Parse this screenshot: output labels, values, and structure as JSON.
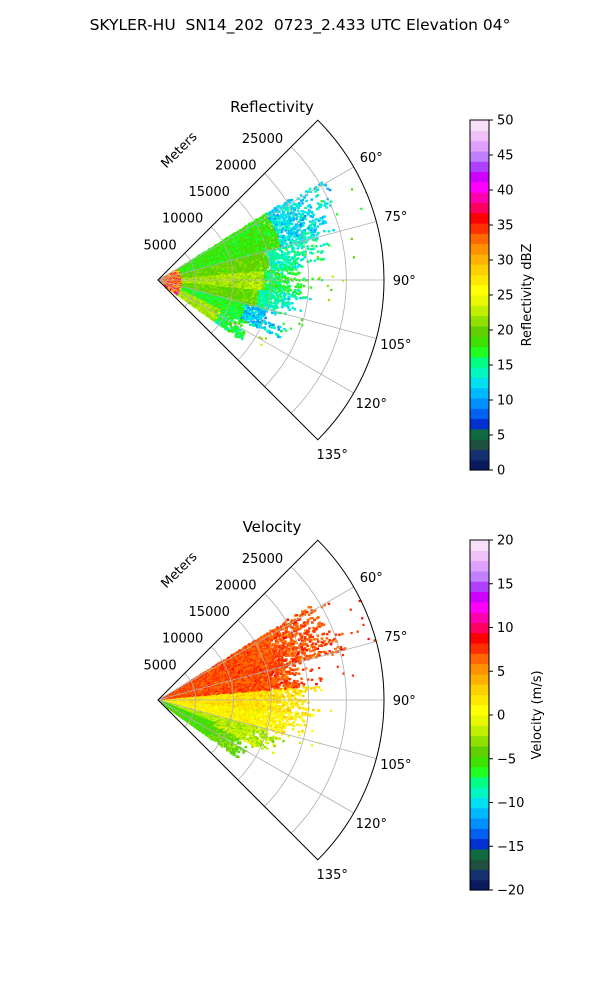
{
  "figure_title": "SKYLER-HU  SN14_202  0723_2.433 UTC Elevation 04°",
  "chart_data": [
    {
      "type": "heatmap",
      "projection": "polar-sector",
      "title": "Reflectivity",
      "range_label": "Meters",
      "range_ticks": [
        5000,
        10000,
        15000,
        20000,
        25000
      ],
      "range_tick_labels": [
        "5000",
        "10000",
        "15000",
        "20000",
        "25000"
      ],
      "range_max": 30000,
      "azimuth_range_deg": [
        45,
        135
      ],
      "azimuth_ticks": [
        60,
        75,
        90,
        105,
        120,
        135
      ],
      "azimuth_tick_labels": [
        "60°",
        "75°",
        "90°",
        "105°",
        "120°",
        "135°"
      ],
      "grid": true,
      "colorbar": {
        "label": "Reflectivity dBZ",
        "min": 0,
        "max": 50,
        "ticks": [
          0,
          5,
          10,
          15,
          20,
          25,
          30,
          35,
          40,
          45,
          50
        ],
        "tick_labels": [
          "0",
          "5",
          "10",
          "15",
          "20",
          "25",
          "30",
          "35",
          "40",
          "45",
          "50"
        ],
        "colors": [
          "#0a1a5e",
          "#14306e",
          "#1e5040",
          "#0e6a40",
          "#0030d0",
          "#0060f0",
          "#0090ff",
          "#00b8ff",
          "#00e0f0",
          "#00f8c0",
          "#00ff80",
          "#20ff20",
          "#40e000",
          "#60d000",
          "#90e000",
          "#c0f000",
          "#e8f800",
          "#ffff00",
          "#ffe800",
          "#ffd000",
          "#ffb000",
          "#ff9000",
          "#ff6800",
          "#ff3000",
          "#ff0000",
          "#ff0060",
          "#ff00b0",
          "#ff00ff",
          "#d000ff",
          "#b040ff",
          "#c080ff",
          "#e0a0ff",
          "#f0c0f8",
          "#f8dff8"
        ]
      },
      "lobes": [
        {
          "azimuth_deg": 70,
          "max_range_m": 24000,
          "value": 18
        },
        {
          "azimuth_deg": 80,
          "max_range_m": 21000,
          "value": 20
        },
        {
          "azimuth_deg": 90,
          "max_range_m": 20000,
          "value": 22
        },
        {
          "azimuth_deg": 100,
          "max_range_m": 19000,
          "value": 20
        },
        {
          "azimuth_deg": 110,
          "max_range_m": 17000,
          "value": 17
        },
        {
          "azimuth_deg": 120,
          "max_range_m": 13000,
          "value": 22
        }
      ],
      "near_range_max_value": 40
    },
    {
      "type": "heatmap",
      "projection": "polar-sector",
      "title": "Velocity",
      "range_label": "Meters",
      "range_ticks": [
        5000,
        10000,
        15000,
        20000,
        25000
      ],
      "range_tick_labels": [
        "5000",
        "10000",
        "15000",
        "20000",
        "25000"
      ],
      "range_max": 30000,
      "azimuth_range_deg": [
        45,
        135
      ],
      "azimuth_ticks": [
        60,
        75,
        90,
        105,
        120,
        135
      ],
      "azimuth_tick_labels": [
        "60°",
        "75°",
        "90°",
        "105°",
        "120°",
        "135°"
      ],
      "grid": true,
      "colorbar": {
        "label": "Velocity (m/s)",
        "min": -20,
        "max": 20,
        "ticks": [
          -20,
          -15,
          -10,
          -5,
          0,
          5,
          10,
          15,
          20
        ],
        "tick_labels": [
          "−20",
          "−15",
          "−10",
          "−5",
          "0",
          "5",
          "10",
          "15",
          "20"
        ],
        "colors": [
          "#0a1a5e",
          "#14306e",
          "#1e5040",
          "#0e6a40",
          "#0030d0",
          "#0060f0",
          "#0090ff",
          "#00b8ff",
          "#00e0f0",
          "#00f8c0",
          "#00ff80",
          "#20ff20",
          "#40e000",
          "#60d000",
          "#90e000",
          "#c0f000",
          "#e8f800",
          "#ffff00",
          "#ffe800",
          "#ffd000",
          "#ffb000",
          "#ff9000",
          "#ff6800",
          "#ff3000",
          "#ff0000",
          "#ff0060",
          "#ff00b0",
          "#ff00ff",
          "#d000ff",
          "#b040ff",
          "#c080ff",
          "#e0a0ff",
          "#f0c0f8",
          "#f8dff8"
        ]
      },
      "lobes": [
        {
          "azimuth_deg": 70,
          "max_range_m": 24000,
          "value": 8
        },
        {
          "azimuth_deg": 80,
          "max_range_m": 21000,
          "value": 7
        },
        {
          "azimuth_deg": 90,
          "max_range_m": 20000,
          "value": 2
        },
        {
          "azimuth_deg": 100,
          "max_range_m": 19000,
          "value": 1
        },
        {
          "azimuth_deg": 110,
          "max_range_m": 17000,
          "value": -2
        },
        {
          "azimuth_deg": 120,
          "max_range_m": 13000,
          "value": -4
        }
      ]
    }
  ]
}
